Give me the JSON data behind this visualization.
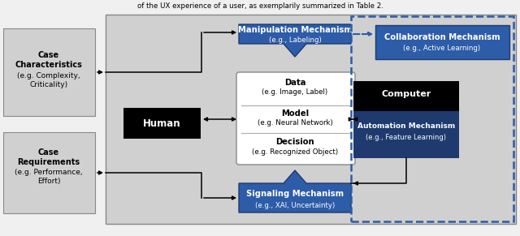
{
  "bg_outer": "#f0f0f0",
  "bg_main": "#d0d0d0",
  "bg_side": "#d0d0d0",
  "white": "#ffffff",
  "black": "#000000",
  "dark_blue": "#1e3a6e",
  "blue": "#2d5ca8",
  "title": "of the UX experience of a user, as exemplarily summarized in Table 2.",
  "case_char_bold": "Case\nCharacteristics",
  "case_char_normal": "(e.g. Complexity,\nCriticality)",
  "case_req_bold": "Case\nRequirements",
  "case_req_normal": "(e.g. Performance,\nEffort)",
  "human": "Human",
  "computer": "Computer",
  "auto_bold": "Automation Mechanism",
  "auto_normal": "(e.g., Feature Learning)",
  "manip_bold": "Manipulation Mechanism",
  "manip_normal": "(e.g., Labeling)",
  "collab_bold": "Collaboration Mechanism",
  "collab_normal": "(e.g., Active Learning)",
  "signal_bold": "Signaling Mechanism",
  "signal_normal": "(e.g., XAI, Uncertainty)",
  "data_bold": "Data",
  "data_normal": "(e.g. Image, Label)",
  "model_bold": "Model",
  "model_normal": "(e.g. Neural Network)",
  "decision_bold": "Decision",
  "decision_normal": "(e.g. Recognized Object)"
}
